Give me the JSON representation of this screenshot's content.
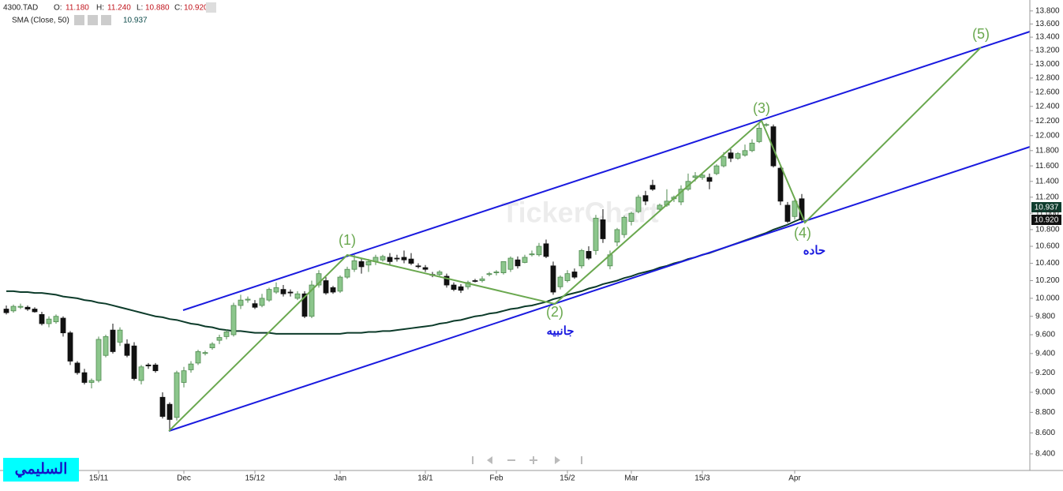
{
  "chart_data": {
    "type": "candlestick",
    "header": {
      "symbol": "4300.TAD",
      "open_label": "O:",
      "open": "11.180",
      "high_label": "H:",
      "high": "11.240",
      "low_label": "L:",
      "low": "10.880",
      "close_label": "C:",
      "close": "10.920",
      "sma_value": "10.937"
    },
    "watermark": "TickerChart",
    "logo": "السليمي",
    "annotations": [
      "(1)",
      "(2)",
      "(3)",
      "(4)",
      "(5)",
      "جانبيه",
      "حاده"
    ],
    "price_tags": [
      "10.937",
      "10.920"
    ],
    "log_scale": true,
    "ylim": [
      8.245,
      13.97
    ],
    "yticks": [
      {
        "value": 8.4,
        "label": "8.400"
      },
      {
        "value": 8.6,
        "label": "8.600"
      },
      {
        "value": 8.8,
        "label": "8.800"
      },
      {
        "value": 9.0,
        "label": "9.000"
      },
      {
        "value": 9.2,
        "label": "9.200"
      },
      {
        "value": 9.4,
        "label": "9.400"
      },
      {
        "value": 9.6,
        "label": "9.600"
      },
      {
        "value": 9.8,
        "label": "9.800"
      },
      {
        "value": 10.0,
        "label": "10.000"
      },
      {
        "value": 10.2,
        "label": "10.200"
      },
      {
        "value": 10.4,
        "label": "10.400"
      },
      {
        "value": 10.6,
        "label": "10.600"
      },
      {
        "value": 10.8,
        "label": "10.800"
      },
      {
        "value": 11.0,
        "label": "11.000"
      },
      {
        "value": 11.2,
        "label": "11.200"
      },
      {
        "value": 11.4,
        "label": "11.400"
      },
      {
        "value": 11.6,
        "label": "11.600"
      },
      {
        "value": 11.8,
        "label": "11.800"
      },
      {
        "value": 12.0,
        "label": "12.000"
      },
      {
        "value": 12.2,
        "label": "12.200"
      },
      {
        "value": 12.4,
        "label": "12.400"
      },
      {
        "value": 12.6,
        "label": "12.600"
      },
      {
        "value": 12.8,
        "label": "12.800"
      },
      {
        "value": 13.0,
        "label": "13.000"
      },
      {
        "value": 13.2,
        "label": "13.200"
      },
      {
        "value": 13.4,
        "label": "13.400"
      },
      {
        "value": 13.6,
        "label": "13.600"
      },
      {
        "value": 13.8,
        "label": "13.800"
      }
    ],
    "categories": [
      null,
      null,
      null,
      null,
      null,
      null,
      null,
      null,
      null,
      null,
      null,
      null,
      null,
      "15/11",
      null,
      null,
      null,
      null,
      null,
      null,
      null,
      null,
      null,
      null,
      null,
      "Dec",
      null,
      null,
      null,
      null,
      null,
      null,
      null,
      null,
      null,
      "15/12",
      null,
      null,
      null,
      null,
      null,
      null,
      null,
      null,
      null,
      null,
      null,
      "Jan",
      null,
      null,
      null,
      null,
      null,
      null,
      null,
      null,
      null,
      null,
      null,
      "18/1",
      null,
      null,
      null,
      null,
      null,
      null,
      null,
      null,
      null,
      "Feb",
      null,
      null,
      null,
      null,
      null,
      null,
      null,
      null,
      null,
      "15/2",
      null,
      null,
      null,
      null,
      null,
      null,
      null,
      null,
      "Mar",
      null,
      null,
      null,
      null,
      null,
      null,
      null,
      null,
      null,
      "15/3",
      null,
      null,
      null,
      null,
      null,
      null,
      null,
      null,
      null,
      null,
      null,
      null,
      "Apr",
      null
    ],
    "candles": {
      "up_color": "#8cc68c",
      "up_border": "#4f8a4f",
      "down_color": "#111111",
      "ohlc": [
        [
          9.88,
          9.92,
          9.82,
          9.84
        ],
        [
          9.86,
          9.93,
          9.84,
          9.91
        ],
        [
          9.9,
          9.94,
          9.88,
          9.91
        ],
        [
          9.9,
          9.92,
          9.86,
          9.88
        ],
        [
          9.88,
          9.9,
          9.84,
          9.85
        ],
        [
          9.82,
          9.85,
          9.7,
          9.72
        ],
        [
          9.72,
          9.8,
          9.68,
          9.77
        ],
        [
          9.74,
          9.82,
          9.72,
          9.8
        ],
        [
          9.78,
          9.8,
          9.58,
          9.62
        ],
        [
          9.62,
          9.64,
          9.28,
          9.32
        ],
        [
          9.3,
          9.32,
          9.18,
          9.2
        ],
        [
          9.2,
          9.24,
          9.08,
          9.1
        ],
        [
          9.1,
          9.14,
          9.04,
          9.12
        ],
        [
          9.12,
          9.58,
          9.1,
          9.55
        ],
        [
          9.38,
          9.6,
          9.36,
          9.58
        ],
        [
          9.65,
          9.72,
          9.4,
          9.42
        ],
        [
          9.52,
          9.68,
          9.48,
          9.65
        ],
        [
          9.5,
          9.55,
          9.36,
          9.38
        ],
        [
          9.48,
          9.52,
          9.12,
          9.14
        ],
        [
          9.12,
          9.28,
          9.08,
          9.26
        ],
        [
          9.28,
          9.3,
          9.24,
          9.27
        ],
        [
          9.28,
          9.3,
          9.2,
          9.22
        ],
        [
          8.95,
          9.0,
          8.74,
          8.76
        ],
        [
          8.88,
          8.9,
          8.62,
          8.73
        ],
        [
          8.75,
          9.22,
          8.72,
          9.2
        ],
        [
          9.1,
          9.26,
          9.05,
          9.22
        ],
        [
          9.23,
          9.32,
          9.2,
          9.29
        ],
        [
          9.3,
          9.44,
          9.28,
          9.42
        ],
        [
          9.4,
          9.43,
          9.38,
          9.41
        ],
        [
          9.46,
          9.52,
          9.44,
          9.5
        ],
        [
          9.54,
          9.6,
          9.5,
          9.57
        ],
        [
          9.58,
          9.66,
          9.55,
          9.63
        ],
        [
          9.6,
          9.95,
          9.58,
          9.92
        ],
        [
          9.92,
          10.04,
          9.88,
          9.98
        ],
        [
          9.98,
          10.02,
          9.95,
          9.99
        ],
        [
          9.94,
          9.98,
          9.88,
          9.9
        ],
        [
          9.92,
          10.05,
          9.9,
          10.0
        ],
        [
          9.98,
          10.12,
          9.96,
          10.1
        ],
        [
          10.07,
          10.18,
          10.05,
          10.12
        ],
        [
          10.1,
          10.15,
          10.02,
          10.05
        ],
        [
          10.07,
          10.1,
          10.02,
          10.06
        ],
        [
          10.0,
          10.08,
          9.98,
          10.05
        ],
        [
          10.05,
          10.08,
          9.78,
          9.8
        ],
        [
          9.8,
          10.2,
          9.78,
          10.15
        ],
        [
          10.15,
          10.32,
          10.12,
          10.28
        ],
        [
          10.2,
          10.24,
          10.04,
          10.06
        ],
        [
          10.12,
          10.14,
          10.05,
          10.07
        ],
        [
          10.08,
          10.26,
          10.06,
          10.24
        ],
        [
          10.24,
          10.36,
          10.22,
          10.33
        ],
        [
          10.33,
          10.5,
          10.3,
          10.43
        ],
        [
          10.42,
          10.46,
          10.28,
          10.36
        ],
        [
          10.38,
          10.45,
          10.3,
          10.42
        ],
        [
          10.42,
          10.5,
          10.38,
          10.47
        ],
        [
          10.44,
          10.5,
          10.42,
          10.48
        ],
        [
          10.47,
          10.52,
          10.38,
          10.42
        ],
        [
          10.46,
          10.5,
          10.42,
          10.46
        ],
        [
          10.47,
          10.55,
          10.4,
          10.44
        ],
        [
          10.45,
          10.52,
          10.38,
          10.4
        ],
        [
          10.37,
          10.4,
          10.34,
          10.37
        ],
        [
          10.35,
          10.38,
          10.3,
          10.33
        ],
        [
          10.27,
          10.3,
          10.24,
          10.27
        ],
        [
          10.27,
          10.32,
          10.24,
          10.3
        ],
        [
          10.25,
          10.28,
          10.12,
          10.15
        ],
        [
          10.15,
          10.18,
          10.08,
          10.1
        ],
        [
          10.13,
          10.16,
          10.06,
          10.09
        ],
        [
          10.13,
          10.2,
          10.1,
          10.18
        ],
        [
          10.2,
          10.22,
          10.18,
          10.2
        ],
        [
          10.2,
          10.25,
          10.18,
          10.22
        ],
        [
          10.27,
          10.3,
          10.25,
          10.28
        ],
        [
          10.29,
          10.32,
          10.26,
          10.3
        ],
        [
          10.29,
          10.42,
          10.27,
          10.42
        ],
        [
          10.33,
          10.48,
          10.3,
          10.46
        ],
        [
          10.44,
          10.48,
          10.34,
          10.37
        ],
        [
          10.41,
          10.5,
          10.4,
          10.47
        ],
        [
          10.5,
          10.55,
          10.48,
          10.51
        ],
        [
          10.5,
          10.64,
          10.48,
          10.6
        ],
        [
          10.63,
          10.68,
          10.46,
          10.48
        ],
        [
          10.37,
          10.42,
          10.04,
          10.07
        ],
        [
          10.13,
          10.26,
          10.1,
          10.24
        ],
        [
          10.2,
          10.32,
          10.18,
          10.28
        ],
        [
          10.3,
          10.34,
          10.22,
          10.24
        ],
        [
          10.37,
          10.57,
          10.34,
          10.55
        ],
        [
          10.54,
          10.6,
          10.44,
          10.46
        ],
        [
          10.55,
          10.98,
          10.5,
          10.94
        ],
        [
          10.92,
          11.05,
          10.64,
          10.69
        ],
        [
          10.37,
          10.55,
          10.33,
          10.5
        ],
        [
          10.65,
          10.82,
          10.6,
          10.8
        ],
        [
          10.74,
          10.97,
          10.7,
          10.95
        ],
        [
          10.9,
          11.02,
          10.85,
          11.0
        ],
        [
          11.02,
          11.23,
          11.0,
          11.2
        ],
        [
          11.22,
          11.28,
          11.1,
          11.15
        ],
        [
          11.35,
          11.42,
          11.28,
          11.3
        ],
        [
          11.05,
          11.12,
          11.02,
          11.1
        ],
        [
          11.1,
          11.3,
          11.08,
          11.15
        ],
        [
          11.18,
          11.22,
          11.14,
          11.2
        ],
        [
          11.14,
          11.35,
          11.1,
          11.3
        ],
        [
          11.3,
          11.5,
          11.28,
          11.4
        ],
        [
          11.45,
          11.52,
          11.4,
          11.47
        ],
        [
          11.45,
          11.5,
          11.42,
          11.48
        ],
        [
          11.45,
          11.5,
          11.3,
          11.4
        ],
        [
          11.5,
          11.62,
          11.48,
          11.6
        ],
        [
          11.6,
          11.78,
          11.58,
          11.72
        ],
        [
          11.77,
          11.82,
          11.65,
          11.7
        ],
        [
          11.7,
          11.78,
          11.68,
          11.76
        ],
        [
          11.74,
          11.88,
          11.72,
          11.8
        ],
        [
          11.8,
          11.95,
          11.78,
          11.9
        ],
        [
          11.92,
          12.18,
          11.9,
          12.1
        ],
        [
          12.14,
          12.17,
          12.12,
          12.15
        ],
        [
          12.12,
          12.15,
          11.58,
          11.6
        ],
        [
          11.57,
          11.62,
          11.1,
          11.15
        ],
        [
          11.1,
          11.14,
          10.88,
          10.9
        ],
        [
          10.96,
          11.2,
          10.92,
          11.15
        ],
        [
          11.18,
          11.24,
          10.88,
          10.92
        ]
      ]
    },
    "series": [
      {
        "name": "SMA (Close, 50)",
        "color": "#0c3b2a",
        "values": [
          10.08,
          10.08,
          10.07,
          10.07,
          10.06,
          10.06,
          10.05,
          10.04,
          10.02,
          10.01,
          10.0,
          9.98,
          9.97,
          9.95,
          9.94,
          9.92,
          9.9,
          9.88,
          9.86,
          9.84,
          9.82,
          9.8,
          9.79,
          9.77,
          9.76,
          9.74,
          9.72,
          9.71,
          9.69,
          9.68,
          9.66,
          9.65,
          9.64,
          9.64,
          9.63,
          9.62,
          9.62,
          9.62,
          9.61,
          9.61,
          9.61,
          9.61,
          9.61,
          9.61,
          9.61,
          9.61,
          9.61,
          9.61,
          9.62,
          9.62,
          9.62,
          9.63,
          9.63,
          9.64,
          9.64,
          9.65,
          9.66,
          9.67,
          9.68,
          9.69,
          9.7,
          9.72,
          9.73,
          9.75,
          9.76,
          9.78,
          9.8,
          9.81,
          9.83,
          9.84,
          9.86,
          9.88,
          9.89,
          9.91,
          9.92,
          9.94,
          9.96,
          9.99,
          10.01,
          10.04,
          10.06,
          10.08,
          10.11,
          10.13,
          10.16,
          10.18,
          10.2,
          10.23,
          10.25,
          10.28,
          10.3,
          10.32,
          10.35,
          10.37,
          10.4,
          10.42,
          10.45,
          10.47,
          10.5,
          10.52,
          10.55,
          10.58,
          10.61,
          10.64,
          10.67,
          10.7,
          10.73,
          10.76,
          10.8,
          10.83,
          10.86,
          10.9,
          10.937
        ]
      }
    ]
  }
}
